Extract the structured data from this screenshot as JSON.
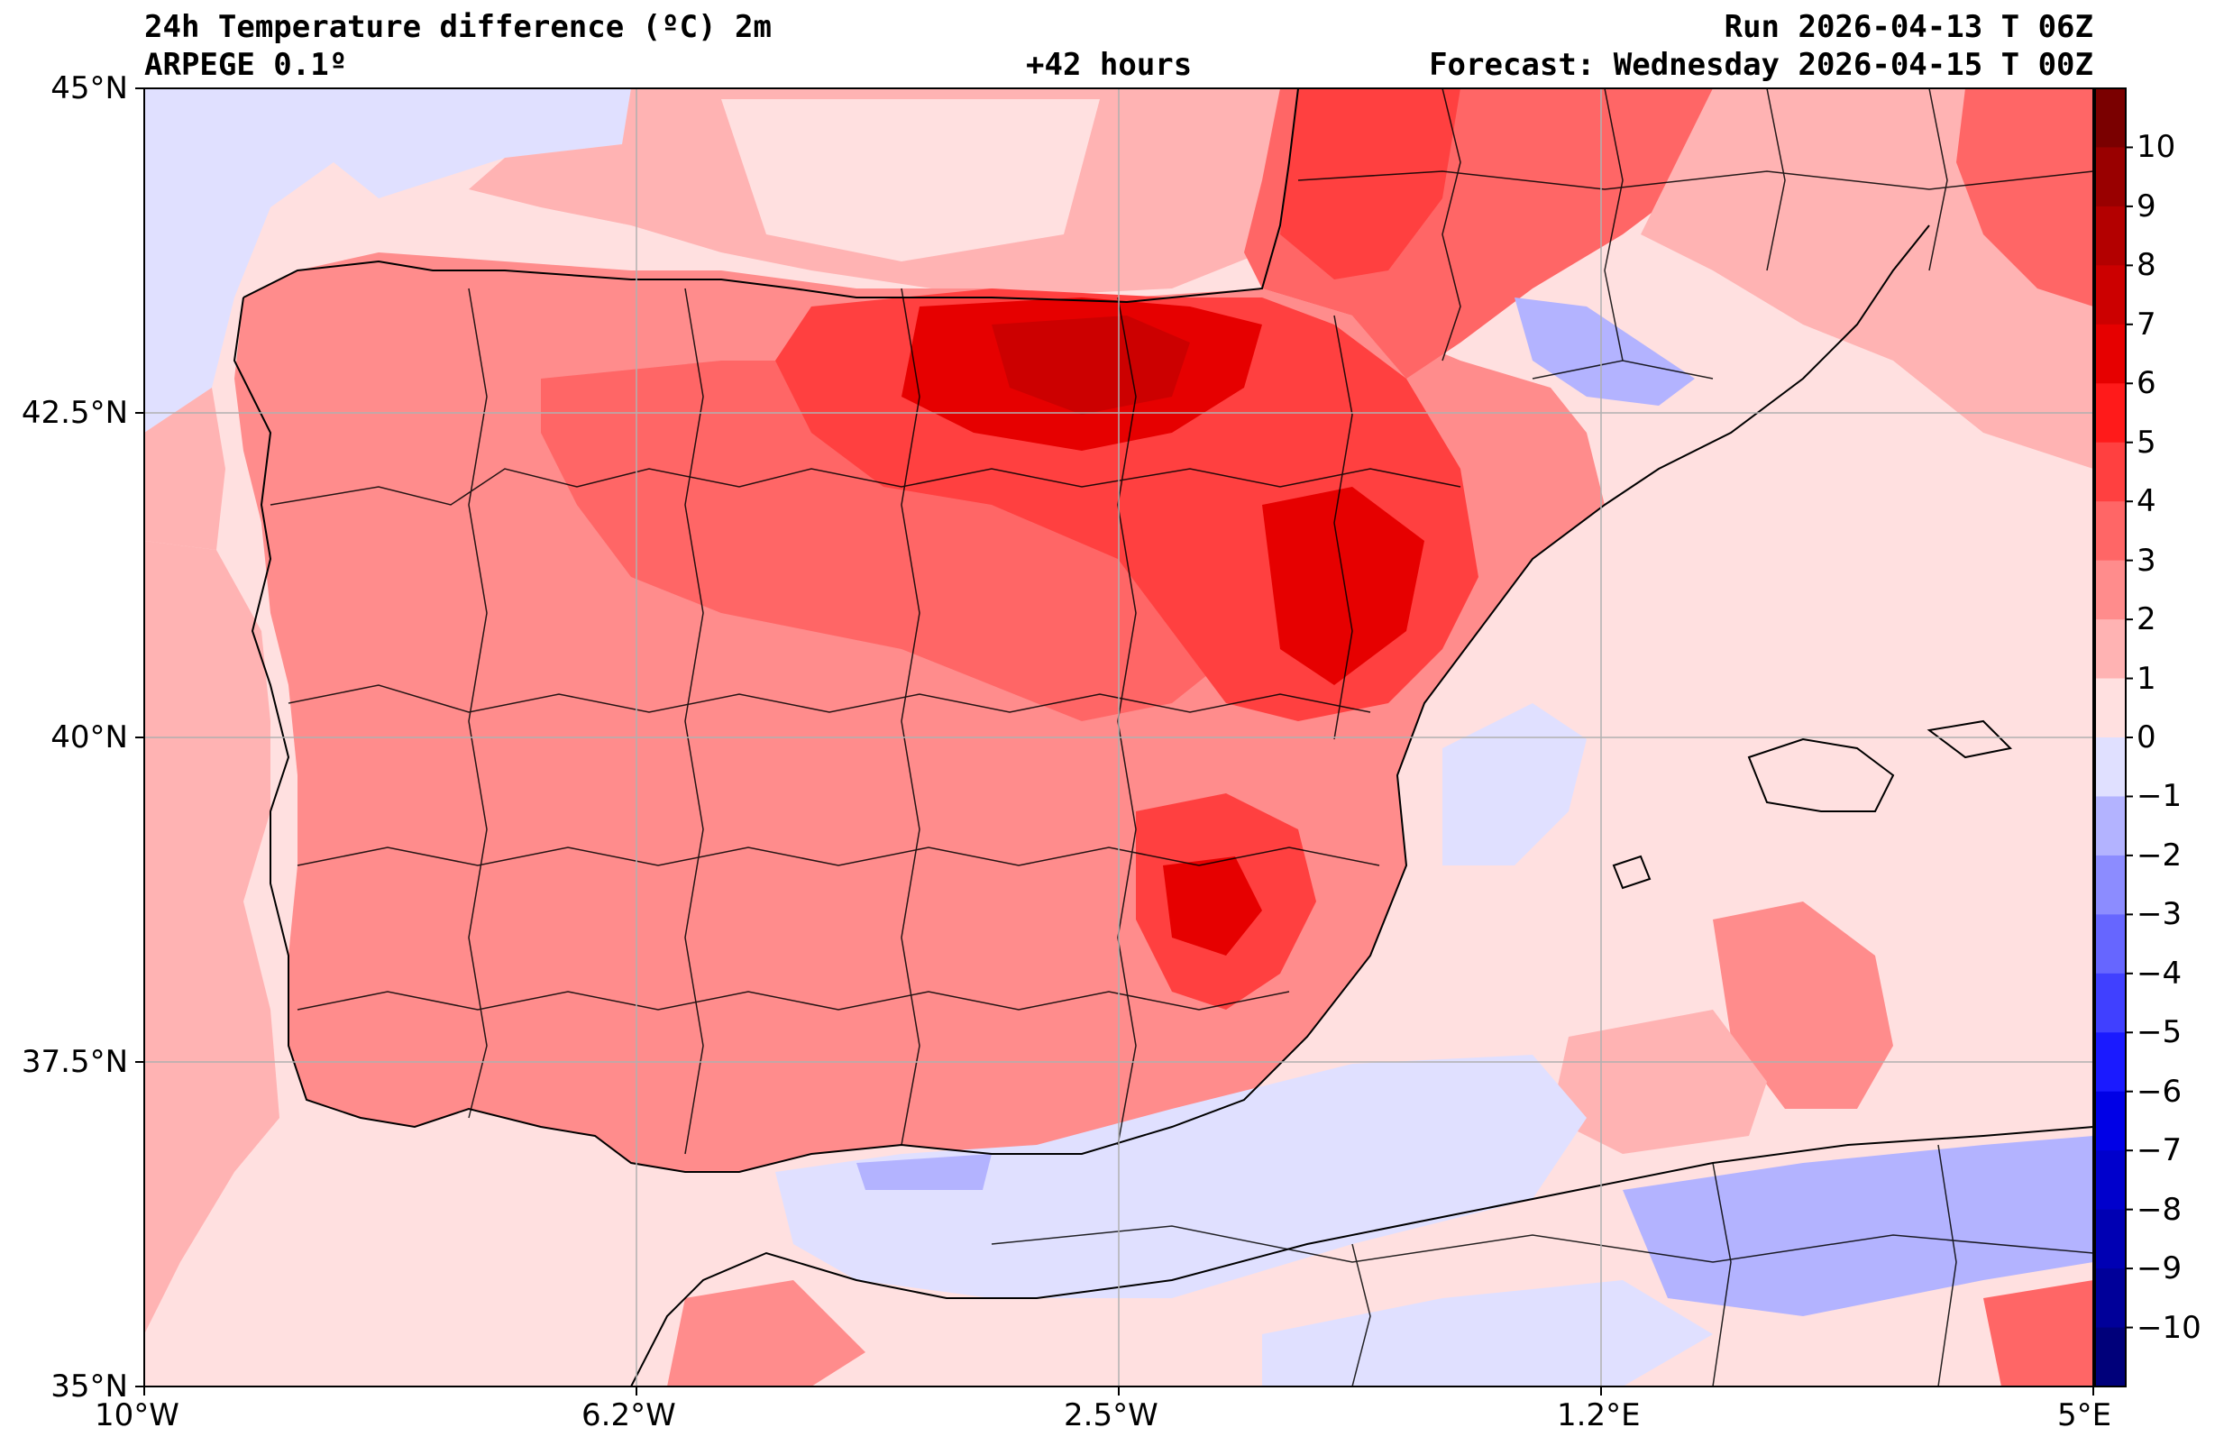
{
  "header": {
    "title": "24h Temperature difference (ºC) 2m",
    "model": "ARPEGE 0.1º",
    "lead": "+42 hours",
    "run": "Run 2026-04-13 T 06Z",
    "forecast": "Forecast: Wednesday 2026-04-15 T 00Z"
  },
  "axes": {
    "lat_labels": [
      "45°N",
      "42.5°N",
      "40°N",
      "37.5°N",
      "35°N"
    ],
    "lon_labels": [
      "10°W",
      "6.2°W",
      "2.5°W",
      "1.2°E",
      "5°E"
    ]
  },
  "colorbar": {
    "ticks": [
      "10",
      "9",
      "8",
      "7",
      "6",
      "5",
      "4",
      "3",
      "2",
      "1",
      "0",
      "−1",
      "−2",
      "−3",
      "−4",
      "−5",
      "−6",
      "−7",
      "−8",
      "−9",
      "−10"
    ],
    "colors": [
      "#7a0000",
      "#990000",
      "#b30000",
      "#cc0000",
      "#e60000",
      "#ff1a1a",
      "#ff4040",
      "#ff6666",
      "#ff8c8c",
      "#ffb3b3",
      "#ffe0e0",
      "#e0e0ff",
      "#b3b3ff",
      "#8c8cff",
      "#6666ff",
      "#4040ff",
      "#1a1aff",
      "#0000e6",
      "#0000cc",
      "#0000b3",
      "#000099",
      "#00007a"
    ]
  }
}
